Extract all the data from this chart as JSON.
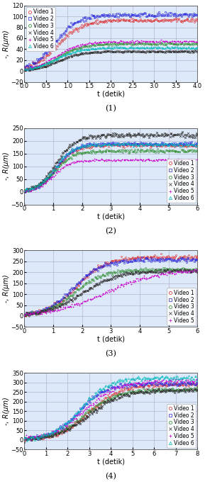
{
  "subplots": [
    {
      "label": "(1)",
      "xlabel": "t (detik)",
      "ylabel": "-, R(μm)",
      "xlim": [
        0,
        4
      ],
      "ylim": [
        -20,
        120
      ],
      "xticks": [
        0,
        0.5,
        1,
        1.5,
        2,
        2.5,
        3,
        3.5,
        4
      ],
      "yticks": [
        -20,
        0,
        20,
        40,
        60,
        80,
        100,
        120
      ],
      "t_max": 4.0,
      "series": [
        {
          "name": "Video 1",
          "color": "#dd2222",
          "marker": "o",
          "R_max": 93,
          "k": 3.5,
          "t0": 0.75,
          "n": 200
        },
        {
          "name": "Video 2",
          "color": "#2222dd",
          "marker": "s",
          "R_max": 103,
          "k": 3.8,
          "t0": 0.7,
          "n": 200
        },
        {
          "name": "Video 3",
          "color": "#228822",
          "marker": "o",
          "R_max": 50,
          "k": 3.6,
          "t0": 0.78,
          "n": 200
        },
        {
          "name": "Video 4",
          "color": "#333333",
          "marker": "x",
          "R_max": 36,
          "k": 3.7,
          "t0": 0.78,
          "n": 200
        },
        {
          "name": "Video 5",
          "color": "#cc00cc",
          "marker": "+",
          "R_max": 54,
          "k": 3.5,
          "t0": 0.73,
          "n": 200
        },
        {
          "name": "Video 6",
          "color": "#00bbbb",
          "marker": "^",
          "R_max": 43,
          "k": 3.6,
          "t0": 0.72,
          "n": 200
        }
      ],
      "legend_loc": "upper left"
    },
    {
      "label": "(2)",
      "xlabel": "t (detik)",
      "ylabel": "-, R(μm)",
      "xlim": [
        0,
        6
      ],
      "ylim": [
        -50,
        250
      ],
      "xticks": [
        0,
        1,
        2,
        3,
        4,
        5,
        6
      ],
      "yticks": [
        -50,
        0,
        50,
        100,
        150,
        200,
        250
      ],
      "t_max": 6.0,
      "series": [
        {
          "name": "Video 1",
          "color": "#dd2222",
          "marker": "o",
          "R_max": 182,
          "k": 3.2,
          "t0": 1.1,
          "n": 200
        },
        {
          "name": "Video 2",
          "color": "#2222dd",
          "marker": "s",
          "R_max": 188,
          "k": 3.2,
          "t0": 1.1,
          "n": 200
        },
        {
          "name": "Video 3",
          "color": "#228822",
          "marker": "o",
          "R_max": 160,
          "k": 3.2,
          "t0": 1.05,
          "n": 200
        },
        {
          "name": "Video 4",
          "color": "#333333",
          "marker": "x",
          "R_max": 222,
          "k": 3.0,
          "t0": 1.1,
          "n": 200
        },
        {
          "name": "Video 5",
          "color": "#cc00cc",
          "marker": "+",
          "R_max": 125,
          "k": 3.4,
          "t0": 1.0,
          "n": 200
        },
        {
          "name": "Video 6",
          "color": "#00bbbb",
          "marker": "^",
          "R_max": 186,
          "k": 3.2,
          "t0": 1.05,
          "n": 200
        }
      ],
      "legend_loc": "lower right"
    },
    {
      "label": "(3)",
      "xlabel": "t (detik)",
      "ylabel": "-, R(μm)",
      "xlim": [
        0,
        6
      ],
      "ylim": [
        -50,
        300
      ],
      "xticks": [
        0,
        1,
        2,
        3,
        4,
        5,
        6
      ],
      "yticks": [
        -50,
        0,
        50,
        100,
        150,
        200,
        250,
        300
      ],
      "t_max": 6.0,
      "series": [
        {
          "name": "Video 1",
          "color": "#dd2222",
          "marker": "o",
          "R_max": 270,
          "k": 2.0,
          "t0": 1.8,
          "n": 200
        },
        {
          "name": "Video 2",
          "color": "#2222dd",
          "marker": "s",
          "R_max": 258,
          "k": 2.0,
          "t0": 1.7,
          "n": 200
        },
        {
          "name": "Video 3",
          "color": "#228822",
          "marker": "o",
          "R_max": 212,
          "k": 2.0,
          "t0": 1.7,
          "n": 200
        },
        {
          "name": "Video 4",
          "color": "#333333",
          "marker": "x",
          "R_max": 208,
          "k": 1.6,
          "t0": 2.0,
          "n": 200
        },
        {
          "name": "Video 5",
          "color": "#cc00cc",
          "marker": "+",
          "R_max": 213,
          "k": 1.1,
          "t0": 2.8,
          "n": 200
        }
      ],
      "legend_loc": "lower right"
    },
    {
      "label": "(4)",
      "xlabel": "t (detik)",
      "ylabel": "-, R(μm)",
      "xlim": [
        0,
        8
      ],
      "ylim": [
        -50,
        350
      ],
      "xticks": [
        0,
        1,
        2,
        3,
        4,
        5,
        6,
        7,
        8
      ],
      "yticks": [
        -50,
        0,
        50,
        100,
        150,
        200,
        250,
        300,
        350
      ],
      "t_max": 8.0,
      "series": [
        {
          "name": "Video 1",
          "color": "#dd2222",
          "marker": "o",
          "R_max": 290,
          "k": 1.4,
          "t0": 3.0,
          "n": 200
        },
        {
          "name": "Video 2",
          "color": "#2222dd",
          "marker": "s",
          "R_max": 295,
          "k": 1.6,
          "t0": 2.5,
          "n": 200
        },
        {
          "name": "Video 3",
          "color": "#228822",
          "marker": "o",
          "R_max": 262,
          "k": 1.4,
          "t0": 2.8,
          "n": 200
        },
        {
          "name": "Video 4",
          "color": "#333333",
          "marker": "x",
          "R_max": 260,
          "k": 1.3,
          "t0": 3.0,
          "n": 200
        },
        {
          "name": "Video 5",
          "color": "#cc00cc",
          "marker": "+",
          "R_max": 310,
          "k": 1.3,
          "t0": 2.8,
          "n": 200
        },
        {
          "name": "Video 6",
          "color": "#00bbbb",
          "marker": "^",
          "R_max": 325,
          "k": 1.5,
          "t0": 2.6,
          "n": 200
        }
      ],
      "legend_loc": "lower right"
    }
  ],
  "bg_color": "#dde8f8",
  "grid_color": "#aaaacc",
  "title_fontsize": 8,
  "axis_fontsize": 7,
  "tick_fontsize": 6,
  "legend_fontsize": 5.5
}
